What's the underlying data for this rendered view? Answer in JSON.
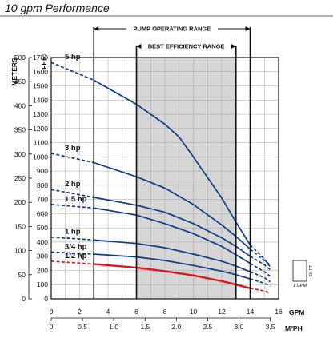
{
  "chart_data": {
    "type": "line",
    "title": "10 gpm Performance",
    "xlabel": "GPM",
    "x2label": "M³PH",
    "ylabel_left": "METERS",
    "ylabel_right": "FEET",
    "xlim": [
      0,
      16
    ],
    "ylim_feet": [
      0,
      1700
    ],
    "ylim_meters": [
      0,
      500
    ],
    "x_ticks": [
      "0",
      "2",
      "4",
      "6",
      "8",
      "10",
      "12",
      "14",
      "16"
    ],
    "x2_ticks": [
      "0",
      "0.5",
      "1.0",
      "1.5",
      "2.0",
      "2.5",
      "3.0",
      "3.5"
    ],
    "x2_tick_values": [
      0,
      0.5,
      1.0,
      1.5,
      2.0,
      2.5,
      3.0,
      3.5
    ],
    "feet_ticks": [
      "0",
      "100",
      "200",
      "300",
      "400",
      "500",
      "600",
      "700",
      "800",
      "900",
      "1000",
      "1100",
      "1200",
      "1300",
      "1400",
      "1500",
      "1600",
      "1700"
    ],
    "meter_ticks": [
      "0",
      "50",
      "100",
      "150",
      "200",
      "250",
      "300",
      "350",
      "400",
      "450",
      "500"
    ],
    "pump_operating_range": {
      "label": "PUMP OPERATING RANGE",
      "x": [
        3,
        14
      ]
    },
    "best_efficiency_range": {
      "label": "BEST EFFICIENCY RANGE",
      "x": [
        6,
        13
      ]
    },
    "grid": true,
    "series": [
      {
        "name": "5 hp",
        "color": "#0f3d85",
        "dashed_left": [
          [
            0,
            1665
          ],
          [
            3,
            1540
          ]
        ],
        "solid": [
          [
            3,
            1540
          ],
          [
            6,
            1370
          ],
          [
            8,
            1230
          ],
          [
            9,
            1140
          ],
          [
            10,
            1000
          ],
          [
            12,
            710
          ],
          [
            13,
            540
          ],
          [
            14,
            380
          ]
        ],
        "dashed_right": [
          [
            14,
            380
          ],
          [
            15,
            280
          ],
          [
            15.4,
            225
          ]
        ]
      },
      {
        "name": "3 hp",
        "color": "#0f3d85",
        "dashed_left": [
          [
            0,
            1025
          ],
          [
            3,
            960
          ]
        ],
        "solid": [
          [
            3,
            960
          ],
          [
            6,
            860
          ],
          [
            8,
            780
          ],
          [
            10,
            665
          ],
          [
            12,
            520
          ],
          [
            13,
            440
          ],
          [
            14,
            350
          ]
        ],
        "dashed_right": [
          [
            14,
            350
          ],
          [
            15,
            270
          ],
          [
            15.4,
            240
          ]
        ]
      },
      {
        "name": "2 hp",
        "color": "#0f3d85",
        "dashed_left": [
          [
            0,
            770
          ],
          [
            3,
            715
          ]
        ],
        "solid": [
          [
            3,
            715
          ],
          [
            6,
            660
          ],
          [
            8,
            610
          ],
          [
            10,
            530
          ],
          [
            12,
            430
          ],
          [
            13,
            370
          ],
          [
            14,
            300
          ]
        ],
        "dashed_right": [
          [
            14,
            300
          ],
          [
            15,
            240
          ],
          [
            15.4,
            205
          ]
        ]
      },
      {
        "name": "1.5 hp",
        "color": "#0f3d85",
        "dashed_left": [
          [
            0,
            665
          ],
          [
            3,
            640
          ]
        ],
        "solid": [
          [
            3,
            640
          ],
          [
            6,
            590
          ],
          [
            8,
            530
          ],
          [
            10,
            460
          ],
          [
            12,
            370
          ],
          [
            13,
            310
          ],
          [
            14,
            250
          ]
        ],
        "dashed_right": [
          [
            14,
            250
          ],
          [
            15,
            190
          ],
          [
            15.4,
            160
          ]
        ]
      },
      {
        "name": "1 hp",
        "color": "#0f3d85",
        "dashed_left": [
          [
            0,
            435
          ],
          [
            3,
            415
          ]
        ],
        "solid": [
          [
            3,
            415
          ],
          [
            6,
            390
          ],
          [
            8,
            360
          ],
          [
            10,
            315
          ],
          [
            12,
            265
          ],
          [
            13,
            230
          ],
          [
            14,
            190
          ]
        ],
        "dashed_right": [
          [
            14,
            190
          ],
          [
            15,
            150
          ],
          [
            15.4,
            120
          ]
        ]
      },
      {
        "name": "3/4 hp",
        "color": "#0f3d85",
        "dashed_left": [
          [
            0,
            330
          ],
          [
            3,
            315
          ]
        ],
        "solid": [
          [
            3,
            315
          ],
          [
            6,
            295
          ],
          [
            8,
            270
          ],
          [
            10,
            235
          ],
          [
            12,
            195
          ],
          [
            13,
            170
          ],
          [
            14,
            140
          ]
        ],
        "dashed_right": [
          [
            14,
            140
          ],
          [
            15,
            110
          ],
          [
            15.4,
            90
          ]
        ]
      },
      {
        "name": "1/2 hp",
        "color": "#e3151e",
        "dashed_left": [
          [
            0,
            265
          ],
          [
            3,
            245
          ]
        ],
        "solid": [
          [
            3,
            245
          ],
          [
            6,
            220
          ],
          [
            8,
            195
          ],
          [
            10,
            165
          ],
          [
            12,
            125
          ],
          [
            13,
            100
          ],
          [
            14,
            75
          ]
        ],
        "dashed_right": [
          [
            14,
            75
          ],
          [
            15,
            55
          ],
          [
            15.4,
            40
          ]
        ]
      }
    ],
    "legend_box": {
      "width_label": "1 GPM",
      "height_label": "50 FT"
    }
  }
}
